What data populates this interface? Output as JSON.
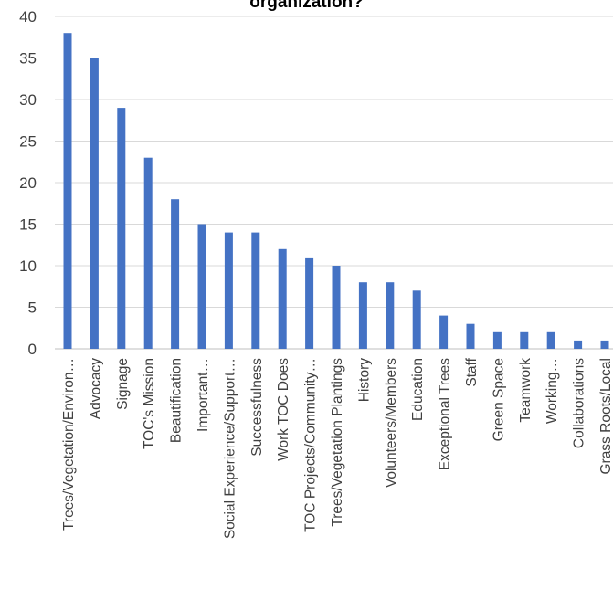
{
  "chart_data": {
    "type": "bar",
    "title": "organization?",
    "categories": [
      "Trees/Vegetation/Environ…",
      "Advocacy",
      "Signage",
      "TOC's Mission",
      "Beautification",
      "Important…",
      "Social Experience/Support…",
      "Successfulness",
      "Work TOC Does",
      "TOC Projects/Community…",
      "Trees/Vegetation Plantings",
      "History",
      "Volunteers/Members",
      "Education",
      "Exceptional Trees",
      "Staff",
      "Green Space",
      "Teamwork",
      "Working…",
      "Collaborations",
      "Grass Roots/Local"
    ],
    "values": [
      38,
      35,
      29,
      23,
      18,
      15,
      14,
      14,
      12,
      11,
      10,
      8,
      8,
      7,
      4,
      3,
      2,
      2,
      2,
      1,
      1
    ],
    "ylim": [
      0,
      40
    ],
    "yticks": [
      0,
      5,
      10,
      15,
      20,
      25,
      30,
      35,
      40
    ],
    "grid": true,
    "legend": "none",
    "bar_color": "#4472C4",
    "grid_color": "#D9D9D9"
  }
}
